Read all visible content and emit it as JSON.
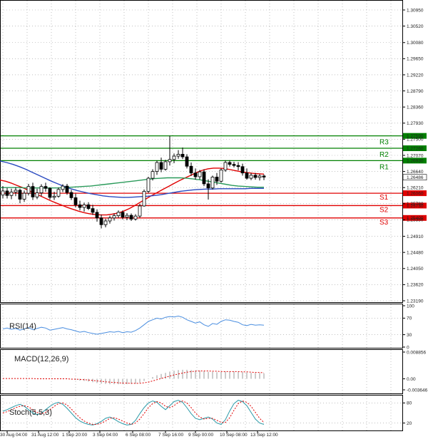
{
  "chart_data": [
    {
      "type": "candlestick",
      "panel": "price",
      "y_axis_ticks": [
        "1.30950",
        "1.30520",
        "1.30080",
        "1.29650",
        "1.29220",
        "1.28790",
        "1.28360",
        "1.27930",
        "1.27500",
        "1.27070",
        "1.26640",
        "1.26210",
        "1.25780",
        "1.25350",
        "1.24910",
        "1.24480",
        "1.24050",
        "1.23620",
        "1.23190"
      ],
      "ylim": [
        1.231,
        1.3115
      ],
      "levels": [
        {
          "name": "R3",
          "value": 1.2759,
          "label": "1.27590",
          "color": "#008000"
        },
        {
          "name": "R2",
          "value": 1.2726,
          "label": "1.27260",
          "color": "#008000"
        },
        {
          "name": "R1",
          "value": 1.2693,
          "label": "1.26930",
          "color": "#008000"
        },
        {
          "name": "S1",
          "value": 1.2606,
          "label": "1.26060",
          "color": "#e00000"
        },
        {
          "name": "S2",
          "value": 1.2573,
          "label": "1.25730",
          "color": "#e00000"
        },
        {
          "name": "S3",
          "value": 1.254,
          "label": "1.25400",
          "color": "#e00000"
        }
      ],
      "current_price": {
        "value": 1.26486,
        "label": "1.26486"
      },
      "candles": [
        [
          1.2601,
          1.2625,
          1.2592,
          1.2612
        ],
        [
          1.2612,
          1.262,
          1.2592,
          1.26
        ],
        [
          1.26,
          1.2618,
          1.259,
          1.2609
        ],
        [
          1.2609,
          1.2622,
          1.2598,
          1.2614
        ],
        [
          1.2614,
          1.2618,
          1.2579,
          1.259
        ],
        [
          1.259,
          1.2613,
          1.2583,
          1.2606
        ],
        [
          1.2606,
          1.2631,
          1.26,
          1.2624
        ],
        [
          1.2624,
          1.2634,
          1.2588,
          1.2596
        ],
        [
          1.2596,
          1.2618,
          1.259,
          1.2607
        ],
        [
          1.2607,
          1.263,
          1.2598,
          1.2624
        ],
        [
          1.2624,
          1.2634,
          1.261,
          1.2619
        ],
        [
          1.2619,
          1.2622,
          1.2589,
          1.2595
        ],
        [
          1.2595,
          1.261,
          1.2588,
          1.2598
        ],
        [
          1.2598,
          1.2621,
          1.2594,
          1.2616
        ],
        [
          1.2616,
          1.263,
          1.2609,
          1.2625
        ],
        [
          1.2625,
          1.2631,
          1.2602,
          1.2608
        ],
        [
          1.2608,
          1.2615,
          1.2588,
          1.2594
        ],
        [
          1.2594,
          1.2605,
          1.2568,
          1.2575
        ],
        [
          1.2575,
          1.2586,
          1.256,
          1.2568
        ],
        [
          1.2568,
          1.2581,
          1.2557,
          1.2575
        ],
        [
          1.2575,
          1.2582,
          1.2561,
          1.2565
        ],
        [
          1.2565,
          1.2575,
          1.2548,
          1.2555
        ],
        [
          1.2555,
          1.2563,
          1.253,
          1.254
        ],
        [
          1.254,
          1.2549,
          1.2512,
          1.2522
        ],
        [
          1.2522,
          1.2538,
          1.2515,
          1.2532
        ],
        [
          1.2532,
          1.2546,
          1.2525,
          1.254
        ],
        [
          1.254,
          1.2552,
          1.2533,
          1.2546
        ],
        [
          1.2546,
          1.256,
          1.254,
          1.2555
        ],
        [
          1.2555,
          1.256,
          1.2536,
          1.2542
        ],
        [
          1.2542,
          1.2553,
          1.2534,
          1.2547
        ],
        [
          1.2547,
          1.2552,
          1.2532,
          1.2537
        ],
        [
          1.2537,
          1.255,
          1.2533,
          1.2545
        ],
        [
          1.2545,
          1.2578,
          1.254,
          1.2572
        ],
        [
          1.2572,
          1.2616,
          1.257,
          1.2611
        ],
        [
          1.2611,
          1.265,
          1.2606,
          1.2646
        ],
        [
          1.2646,
          1.267,
          1.264,
          1.2664
        ],
        [
          1.2664,
          1.2693,
          1.2655,
          1.2688
        ],
        [
          1.2688,
          1.2701,
          1.2662,
          1.267
        ],
        [
          1.267,
          1.2695,
          1.2666,
          1.269
        ],
        [
          1.269,
          1.2759,
          1.268,
          1.2696
        ],
        [
          1.2696,
          1.2712,
          1.2686,
          1.2705
        ],
        [
          1.2705,
          1.2721,
          1.2698,
          1.271
        ],
        [
          1.271,
          1.2728,
          1.2697,
          1.2703
        ],
        [
          1.2703,
          1.271,
          1.2672,
          1.2678
        ],
        [
          1.2678,
          1.2688,
          1.2652,
          1.266
        ],
        [
          1.266,
          1.2672,
          1.2642,
          1.265
        ],
        [
          1.265,
          1.2668,
          1.2643,
          1.2663
        ],
        [
          1.2663,
          1.267,
          1.2625,
          1.2631
        ],
        [
          1.2631,
          1.2643,
          1.2589,
          1.262
        ],
        [
          1.262,
          1.2653,
          1.2616,
          1.2649
        ],
        [
          1.2649,
          1.266,
          1.2628,
          1.2638
        ],
        [
          1.2638,
          1.2672,
          1.2634,
          1.2668
        ],
        [
          1.2668,
          1.2694,
          1.2663,
          1.2688
        ],
        [
          1.2688,
          1.2694,
          1.2677,
          1.2683
        ],
        [
          1.2683,
          1.269,
          1.2675,
          1.268
        ],
        [
          1.268,
          1.2689,
          1.2667,
          1.2677
        ],
        [
          1.2677,
          1.2685,
          1.2653,
          1.266
        ],
        [
          1.266,
          1.2672,
          1.2642,
          1.2646
        ],
        [
          1.2646,
          1.266,
          1.2641,
          1.2654
        ],
        [
          1.2654,
          1.266,
          1.2642,
          1.2648
        ],
        [
          1.2648,
          1.2657,
          1.264,
          1.2652
        ],
        [
          1.2652,
          1.2656,
          1.2641,
          1.2649
        ]
      ],
      "moving_averages": [
        {
          "color": "#e00000",
          "values": [
            1.2641,
            1.2638,
            1.2633,
            1.2627,
            1.2621,
            1.2614,
            1.2607,
            1.26,
            1.2593,
            1.2586,
            1.258,
            1.2574,
            1.2568,
            1.2563,
            1.2558,
            1.2554,
            1.2551,
            1.2549,
            1.2548,
            1.2548,
            1.255,
            1.2553,
            1.2558,
            1.2565,
            1.2573,
            1.2582,
            1.2591,
            1.26,
            1.2608,
            1.2616,
            1.2624,
            1.2632,
            1.264,
            1.2647,
            1.2654,
            1.2661,
            1.2667,
            1.2671,
            1.2673,
            1.2673,
            1.2672,
            1.2669,
            1.2666,
            1.2663,
            1.2661,
            1.2659,
            1.2658,
            1.2657
          ]
        },
        {
          "color": "#2a9a5a",
          "values": [
            1.2621,
            1.2621,
            1.2621,
            1.2621,
            1.262,
            1.262,
            1.262,
            1.262,
            1.262,
            1.262,
            1.2621,
            1.2622,
            1.2623,
            1.2624,
            1.2625,
            1.2627,
            1.2629,
            1.2631,
            1.2633,
            1.2635,
            1.2637,
            1.2639,
            1.2641,
            1.2643,
            1.2645,
            1.2646,
            1.2647,
            1.2647,
            1.2647,
            1.2646,
            1.2644,
            1.2642,
            1.2639,
            1.2636,
            1.2633,
            1.263,
            1.2627,
            1.2625,
            1.2624,
            1.2623,
            1.2622,
            1.2622
          ]
        },
        {
          "color": "#2a4ac0",
          "values": [
            1.2692,
            1.2688,
            1.2683,
            1.2677,
            1.267,
            1.2662,
            1.2654,
            1.2646,
            1.2638,
            1.2631,
            1.2624,
            1.2618,
            1.2613,
            1.2609,
            1.2605,
            1.2602,
            1.2599,
            1.2597,
            1.2596,
            1.2595,
            1.2595,
            1.2596,
            1.2597,
            1.2598,
            1.26,
            1.2602,
            1.2605,
            1.2608,
            1.2611,
            1.2613,
            1.2615,
            1.2616,
            1.2617,
            1.2617,
            1.2618,
            1.2618,
            1.2618,
            1.2618,
            1.2618,
            1.2619,
            1.2619,
            1.2619
          ]
        }
      ]
    },
    {
      "type": "line",
      "panel": "rsi",
      "title": "RSI(14)",
      "y_axis_ticks": [
        "100",
        "70",
        "30",
        "0"
      ],
      "ylim": [
        0,
        100
      ],
      "values": [
        44,
        46,
        43,
        45,
        41,
        44,
        47,
        42,
        45,
        48,
        46,
        41,
        43,
        45,
        47,
        44,
        42,
        39,
        36,
        38,
        35,
        33,
        31,
        33,
        35,
        37,
        36,
        38,
        35,
        37,
        36,
        40,
        46,
        54,
        62,
        66,
        70,
        68,
        72,
        74,
        73,
        75,
        72,
        66,
        62,
        58,
        61,
        54,
        50,
        57,
        55,
        62,
        66,
        65,
        62,
        60,
        54,
        52,
        55,
        53,
        54,
        53
      ]
    },
    {
      "type": "bar",
      "panel": "macd",
      "title": "MACD(12,26,9)",
      "y_axis_ticks": [
        "0.008856",
        "0.00",
        "-0.003646"
      ],
      "ylim": [
        -0.003646,
        0.008856
      ],
      "values": [
        0.0001,
        0.0001,
        0.0001,
        0.0001,
        0.0,
        0.0,
        0.0001,
        0.0,
        0.0,
        0.0001,
        0.0001,
        0.0,
        -0.0001,
        -0.0001,
        -0.0001,
        -0.0001,
        -0.0002,
        -0.0004,
        -0.0006,
        -0.0007,
        -0.0009,
        -0.0011,
        -0.0014,
        -0.0016,
        -0.0017,
        -0.0018,
        -0.0018,
        -0.0018,
        -0.0018,
        -0.0018,
        -0.0017,
        -0.0016,
        -0.0013,
        -0.0007,
        0.0,
        0.0006,
        0.0012,
        0.0016,
        0.002,
        0.0024,
        0.0027,
        0.0029,
        0.003,
        0.003,
        0.0029,
        0.0028,
        0.0027,
        0.0025,
        0.0023,
        0.0023,
        0.0022,
        0.0023,
        0.0024,
        0.0024,
        0.0024,
        0.0023,
        0.0022,
        0.0021,
        0.002,
        0.0019,
        0.0019,
        0.0018
      ],
      "signal": [
        0.0001,
        0.0001,
        0.0001,
        0.0001,
        0.0001,
        0.0001,
        0.0001,
        0.0001,
        0.0,
        0.0,
        0.0,
        0.0,
        0.0,
        0.0,
        0.0,
        0.0,
        -0.0001,
        -0.0001,
        -0.0002,
        -0.0003,
        -0.0004,
        -0.0005,
        -0.0007,
        -0.0008,
        -0.001,
        -0.0011,
        -0.0012,
        -0.0013,
        -0.0014,
        -0.0014,
        -0.0015,
        -0.0015,
        -0.0015,
        -0.0013,
        -0.0011,
        -0.0007,
        -0.0003,
        0.0001,
        0.0005,
        0.0009,
        0.0013,
        0.0016,
        0.0019,
        0.0022,
        0.0024,
        0.0025,
        0.0026,
        0.0026,
        0.0026,
        0.0025,
        0.0025,
        0.0024,
        0.0024,
        0.0024,
        0.0024,
        0.0024,
        0.0023,
        0.0023,
        0.0022,
        0.0021,
        0.0021,
        0.002
      ]
    },
    {
      "type": "line",
      "panel": "stoch",
      "title": "Stoch(5,5,3)",
      "y_axis_ticks": [
        "80",
        "20"
      ],
      "ylim": [
        0,
        100
      ],
      "main": [
        55,
        60,
        66,
        72,
        76,
        70,
        60,
        50,
        45,
        50,
        60,
        70,
        78,
        82,
        76,
        64,
        50,
        36,
        26,
        20,
        16,
        14,
        18,
        25,
        34,
        38,
        32,
        24,
        18,
        14,
        16,
        28,
        48,
        66,
        80,
        86,
        82,
        70,
        60,
        72,
        84,
        88,
        82,
        66,
        48,
        34,
        30,
        34,
        38,
        32,
        20,
        16,
        30,
        56,
        78,
        88,
        84,
        72,
        52,
        32,
        20,
        16
      ],
      "signal": [
        50,
        54,
        60,
        66,
        70,
        72,
        68,
        60,
        52,
        48,
        52,
        60,
        70,
        78,
        80,
        74,
        62,
        48,
        36,
        26,
        20,
        16,
        16,
        20,
        26,
        34,
        36,
        32,
        26,
        20,
        16,
        20,
        32,
        48,
        66,
        78,
        84,
        80,
        70,
        66,
        72,
        82,
        86,
        80,
        66,
        50,
        38,
        32,
        34,
        34,
        28,
        22,
        22,
        36,
        58,
        78,
        86,
        82,
        70,
        52,
        34,
        22
      ]
    }
  ],
  "x_axis_ticks": [
    "30 Aug 04:00",
    "31 Aug 12:00",
    "1 Sep 20:00",
    "3 Sep 04:00",
    "6 Sep 08:00",
    "7 Sep 16:00",
    "9 Sep 00:00",
    "10 Sep 08:00",
    "13 Sep 12:00"
  ]
}
